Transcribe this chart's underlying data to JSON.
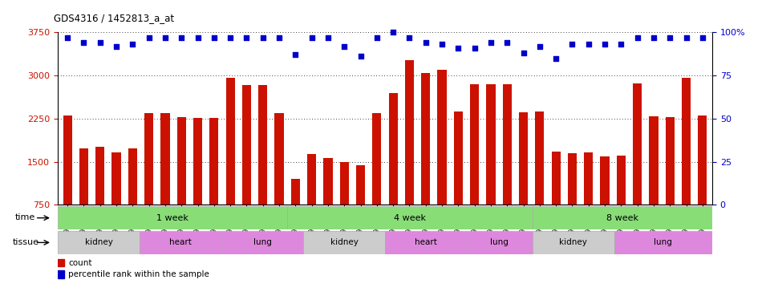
{
  "title": "GDS4316 / 1452813_a_at",
  "samples": [
    "GSM949115",
    "GSM949116",
    "GSM949117",
    "GSM949118",
    "GSM949119",
    "GSM949120",
    "GSM949121",
    "GSM949122",
    "GSM949123",
    "GSM949124",
    "GSM949125",
    "GSM949126",
    "GSM949127",
    "GSM949128",
    "GSM949129",
    "GSM949130",
    "GSM949131",
    "GSM949132",
    "GSM949133",
    "GSM949134",
    "GSM949135",
    "GSM949136",
    "GSM949137",
    "GSM949138",
    "GSM949139",
    "GSM949140",
    "GSM949141",
    "GSM949142",
    "GSM949143",
    "GSM949144",
    "GSM949145",
    "GSM949146",
    "GSM949147",
    "GSM949148",
    "GSM949149",
    "GSM949150",
    "GSM949151",
    "GSM949152",
    "GSM949153",
    "GSM949154"
  ],
  "counts": [
    2310,
    1730,
    1760,
    1660,
    1730,
    2340,
    2340,
    2280,
    2260,
    2260,
    2960,
    2840,
    2840,
    2350,
    1200,
    1640,
    1560,
    1500,
    1440,
    2340,
    2700,
    3260,
    3040,
    3100,
    2380,
    2850,
    2850,
    2850,
    2360,
    2380,
    1680,
    1650,
    1660,
    1590,
    1600,
    2860,
    2290,
    2280,
    2960,
    2300
  ],
  "percentile_ranks": [
    97,
    94,
    94,
    92,
    93,
    97,
    97,
    97,
    97,
    97,
    97,
    97,
    97,
    97,
    87,
    97,
    97,
    92,
    86,
    97,
    100,
    97,
    94,
    93,
    91,
    91,
    94,
    94,
    88,
    92,
    85,
    93,
    93,
    93,
    93,
    97,
    97,
    97,
    97,
    97
  ],
  "bar_color": "#cc1100",
  "dot_color": "#0000cc",
  "ylim_left": [
    750,
    3750
  ],
  "yticks_left": [
    750,
    1500,
    2250,
    3000,
    3750
  ],
  "ylim_right": [
    0,
    100
  ],
  "yticks_right": [
    0,
    25,
    50,
    75,
    100
  ],
  "grid_color": "#000000",
  "bg_color": "#ffffff",
  "plot_bg": "#ffffff",
  "time_boundaries": [
    [
      0,
      14,
      "1 week"
    ],
    [
      14,
      29,
      "4 week"
    ],
    [
      29,
      40,
      "8 week"
    ]
  ],
  "time_color": "#88dd77",
  "tissue_groups": [
    {
      "label": "kidney",
      "start": 0,
      "end": 5,
      "color": "#cccccc"
    },
    {
      "label": "heart",
      "start": 5,
      "end": 10,
      "color": "#dd88dd"
    },
    {
      "label": "lung",
      "start": 10,
      "end": 15,
      "color": "#dd88dd"
    },
    {
      "label": "kidney",
      "start": 15,
      "end": 20,
      "color": "#cccccc"
    },
    {
      "label": "heart",
      "start": 20,
      "end": 25,
      "color": "#dd88dd"
    },
    {
      "label": "lung",
      "start": 25,
      "end": 29,
      "color": "#dd88dd"
    },
    {
      "label": "kidney",
      "start": 29,
      "end": 34,
      "color": "#cccccc"
    },
    {
      "label": "lung",
      "start": 34,
      "end": 40,
      "color": "#dd88dd"
    }
  ],
  "legend_count_label": "count",
  "legend_pct_label": "percentile rank within the sample",
  "xlabel_time": "time",
  "xlabel_tissue": "tissue",
  "bar_bottom": 750,
  "dot_size": 22
}
